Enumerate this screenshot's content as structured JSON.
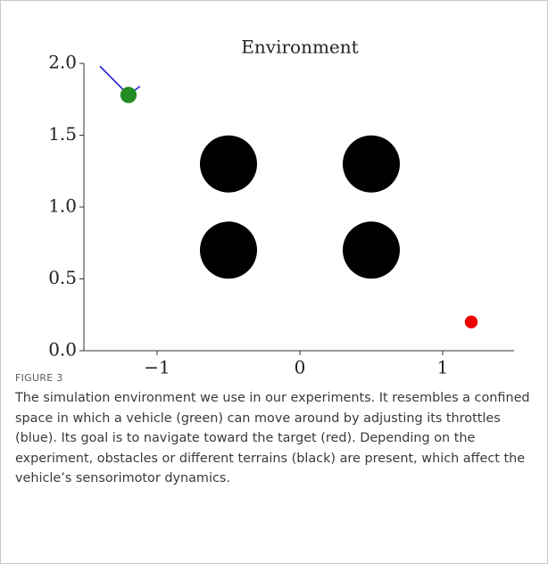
{
  "chart_data": {
    "type": "scatter",
    "title": "Environment",
    "xlim": [
      -1.5,
      1.5
    ],
    "xticks": [
      {
        "value": -1,
        "label": "−1"
      },
      0,
      1
    ],
    "ylim": [
      0,
      2
    ],
    "yticks": [
      {
        "value": 0,
        "label": "0.0"
      },
      0.5,
      {
        "value": 1,
        "label": "1.0"
      },
      1.5,
      {
        "value": 2,
        "label": "2.0"
      }
    ],
    "grid": false,
    "throttles": [
      {
        "color": "#1f1fd6",
        "x": [
          -1.2,
          -1.4
        ],
        "y": [
          1.78,
          1.98
        ]
      },
      {
        "color": "#1f1fd6",
        "x": [
          -1.2,
          -1.12
        ],
        "y": [
          1.78,
          1.84
        ]
      }
    ],
    "series": [
      {
        "color": "#000000",
        "x": [
          -0.5,
          0.5,
          -0.5,
          0.5
        ],
        "y": [
          1.3,
          1.3,
          0.7,
          0.7
        ],
        "r": [
          0.2,
          0.2,
          0.2,
          0.2
        ]
      },
      {
        "color": "#ee0000",
        "x": [
          1.2
        ],
        "y": [
          0.2
        ],
        "r": [
          0.045
        ]
      },
      {
        "color": "#228b22",
        "x": [
          -1.2
        ],
        "y": [
          1.78
        ],
        "r": [
          0.057
        ]
      }
    ]
  },
  "caption": {
    "label": "FIGURE 3",
    "text": "The simulation environment we use in our experiments. It resembles a confined space in which a vehicle (green) can move around by adjusting its throttles (blue). Its goal is to navigate toward the target (red). Depending on the experiment, obstacles or different terrains (black) are present, which affect the vehicle’s sensorimotor dynamics."
  }
}
